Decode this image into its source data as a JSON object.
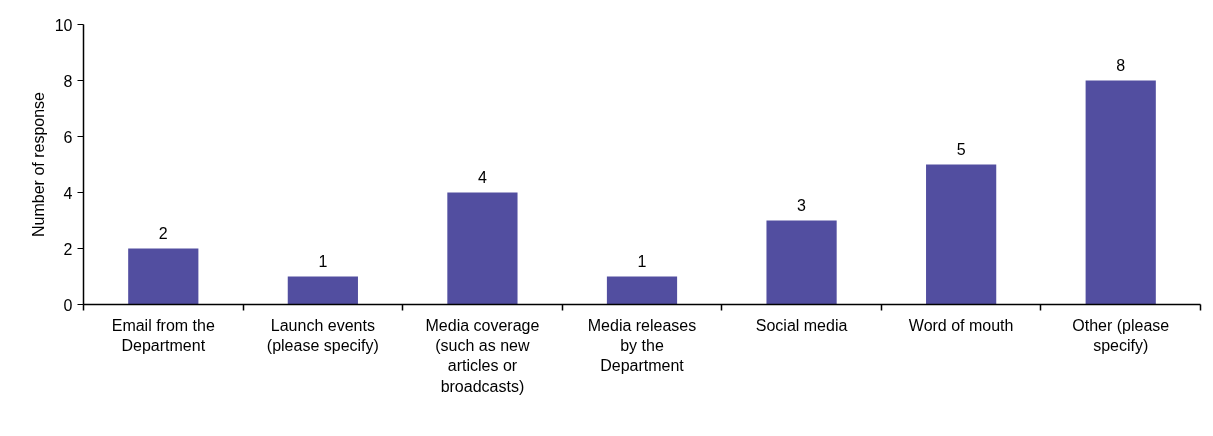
{
  "chart_data": {
    "type": "bar",
    "ylabel": "Number of response",
    "categories": [
      "Email from the Department",
      "Launch events (please specify)",
      "Media coverage (such as new articles or broadcasts)",
      "Media releases by the Department",
      "Social media",
      "Word of mouth",
      "Other (please specify)"
    ],
    "values": [
      2,
      1,
      4,
      1,
      3,
      5,
      8
    ],
    "color": "#524ea0",
    "ylim": [
      0,
      10
    ],
    "yticks": [
      0,
      2,
      4,
      6,
      8,
      10
    ],
    "data_labels": true
  }
}
